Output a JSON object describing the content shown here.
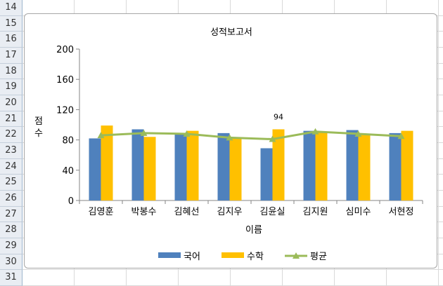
{
  "sheet": {
    "row_numbers": [
      "14",
      "15",
      "16",
      "17",
      "18",
      "19",
      "20",
      "21",
      "22",
      "23",
      "24",
      "25",
      "26",
      "27",
      "28",
      "29",
      "30",
      "31"
    ]
  },
  "chart_data": {
    "type": "bar",
    "title": "성적보고서",
    "xlabel": "이름",
    "ylabel": "점수",
    "ylim": [
      0,
      200
    ],
    "yticks": [
      0,
      40,
      80,
      120,
      160,
      200
    ],
    "categories": [
      "김영훈",
      "박봉수",
      "김혜선",
      "김지우",
      "김윤실",
      "김지원",
      "심미수",
      "서현정"
    ],
    "series": [
      {
        "name": "국어",
        "type": "bar",
        "color": "#4f81bd",
        "values": [
          82,
          94,
          88,
          89,
          69,
          92,
          93,
          89
        ]
      },
      {
        "name": "수학",
        "type": "bar",
        "color": "#ffc000",
        "values": [
          99,
          84,
          92,
          83,
          94,
          90,
          87,
          92
        ]
      },
      {
        "name": "평균",
        "type": "line",
        "color": "#9bbb59",
        "values": [
          86,
          89,
          88,
          83,
          81,
          91,
          88,
          85
        ]
      }
    ],
    "data_labels": [
      {
        "series": "수학",
        "category": "김윤실",
        "text": "94"
      }
    ],
    "legend": "bottom",
    "grid": false
  }
}
